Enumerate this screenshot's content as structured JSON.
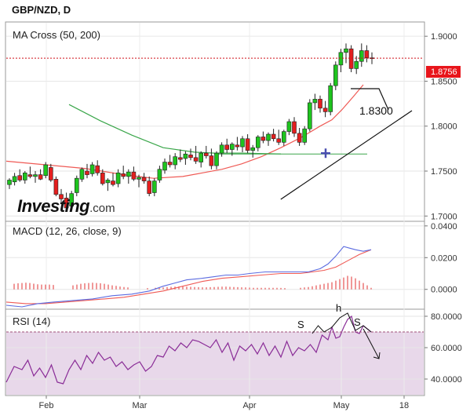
{
  "header": {
    "symbol": "GBP/NZD, D"
  },
  "watermark": {
    "brand": "Investing",
    "suffix": ".com"
  },
  "chart_data": [
    {
      "type": "candlestick",
      "title": "MA Cross (50, 200)",
      "y_ticks": [
        "1.9000",
        "1.8500",
        "1.8000",
        "1.7500",
        "1.7000"
      ],
      "ylim": [
        1.695,
        1.915
      ],
      "last_price": "1.8756",
      "last_price_value": 1.8756,
      "annotation": "1.8300",
      "x_ticks": [
        "Feb",
        "Mar",
        "Apr",
        "May",
        "18"
      ],
      "candles": [
        [
          1.735,
          1.742,
          1.73,
          1.74
        ],
        [
          1.738,
          1.748,
          1.734,
          1.744
        ],
        [
          1.745,
          1.752,
          1.738,
          1.74
        ],
        [
          1.74,
          1.75,
          1.736,
          1.748
        ],
        [
          1.746,
          1.755,
          1.742,
          1.744
        ],
        [
          1.744,
          1.75,
          1.737,
          1.746
        ],
        [
          1.746,
          1.752,
          1.74,
          1.741
        ],
        [
          1.745,
          1.76,
          1.742,
          1.757
        ],
        [
          1.754,
          1.758,
          1.738,
          1.74
        ],
        [
          1.741,
          1.744,
          1.722,
          1.724
        ],
        [
          1.724,
          1.73,
          1.715,
          1.719
        ],
        [
          1.72,
          1.726,
          1.706,
          1.709
        ],
        [
          1.711,
          1.728,
          1.708,
          1.725
        ],
        [
          1.726,
          1.745,
          1.722,
          1.742
        ],
        [
          1.741,
          1.754,
          1.738,
          1.752
        ],
        [
          1.75,
          1.758,
          1.742,
          1.746
        ],
        [
          1.747,
          1.76,
          1.744,
          1.757
        ],
        [
          1.756,
          1.762,
          1.745,
          1.748
        ],
        [
          1.748,
          1.752,
          1.734,
          1.736
        ],
        [
          1.737,
          1.742,
          1.728,
          1.74
        ],
        [
          1.739,
          1.748,
          1.733,
          1.735
        ],
        [
          1.736,
          1.752,
          1.732,
          1.748
        ],
        [
          1.747,
          1.756,
          1.741,
          1.744
        ],
        [
          1.744,
          1.752,
          1.736,
          1.749
        ],
        [
          1.749,
          1.755,
          1.739,
          1.741
        ],
        [
          1.741,
          1.746,
          1.732,
          1.743
        ],
        [
          1.743,
          1.748,
          1.736,
          1.739
        ],
        [
          1.739,
          1.744,
          1.722,
          1.725
        ],
        [
          1.726,
          1.742,
          1.722,
          1.739
        ],
        [
          1.74,
          1.756,
          1.737,
          1.752
        ],
        [
          1.751,
          1.764,
          1.747,
          1.76
        ],
        [
          1.76,
          1.768,
          1.754,
          1.757
        ],
        [
          1.757,
          1.77,
          1.752,
          1.766
        ],
        [
          1.765,
          1.774,
          1.76,
          1.763
        ],
        [
          1.764,
          1.772,
          1.757,
          1.769
        ],
        [
          1.768,
          1.775,
          1.762,
          1.765
        ],
        [
          1.765,
          1.778,
          1.758,
          1.761
        ],
        [
          1.76,
          1.772,
          1.754,
          1.77
        ],
        [
          1.77,
          1.778,
          1.764,
          1.767
        ],
        [
          1.767,
          1.775,
          1.752,
          1.756
        ],
        [
          1.756,
          1.772,
          1.752,
          1.77
        ],
        [
          1.77,
          1.782,
          1.766,
          1.779
        ],
        [
          1.779,
          1.786,
          1.77,
          1.774
        ],
        [
          1.774,
          1.782,
          1.767,
          1.78
        ],
        [
          1.779,
          1.788,
          1.773,
          1.777
        ],
        [
          1.777,
          1.789,
          1.771,
          1.786
        ],
        [
          1.786,
          1.791,
          1.77,
          1.773
        ],
        [
          1.773,
          1.779,
          1.765,
          1.776
        ],
        [
          1.776,
          1.79,
          1.772,
          1.788
        ],
        [
          1.788,
          1.794,
          1.781,
          1.784
        ],
        [
          1.784,
          1.793,
          1.778,
          1.791
        ],
        [
          1.791,
          1.797,
          1.783,
          1.786
        ],
        [
          1.786,
          1.796,
          1.779,
          1.782
        ],
        [
          1.782,
          1.796,
          1.778,
          1.794
        ],
        [
          1.794,
          1.808,
          1.79,
          1.805
        ],
        [
          1.805,
          1.81,
          1.788,
          1.792
        ],
        [
          1.792,
          1.798,
          1.778,
          1.782
        ],
        [
          1.782,
          1.8,
          1.779,
          1.797
        ],
        [
          1.797,
          1.83,
          1.794,
          1.826
        ],
        [
          1.826,
          1.836,
          1.818,
          1.83
        ],
        [
          1.83,
          1.834,
          1.815,
          1.82
        ],
        [
          1.82,
          1.828,
          1.81,
          1.816
        ],
        [
          1.816,
          1.848,
          1.812,
          1.845
        ],
        [
          1.845,
          1.872,
          1.84,
          1.868
        ],
        [
          1.868,
          1.886,
          1.86,
          1.882
        ],
        [
          1.882,
          1.892,
          1.87,
          1.886
        ],
        [
          1.886,
          1.89,
          1.86,
          1.864
        ],
        [
          1.864,
          1.878,
          1.858,
          1.872
        ],
        [
          1.872,
          1.892,
          1.866,
          1.884
        ],
        [
          1.884,
          1.89,
          1.871,
          1.876
        ],
        [
          1.876,
          1.882,
          1.869,
          1.8756
        ]
      ],
      "ma50": [
        [
          32,
          1.824
        ],
        [
          48,
          1.806
        ],
        [
          64,
          1.79
        ],
        [
          80,
          1.776
        ],
        [
          96,
          1.771
        ],
        [
          106,
          1.77
        ],
        [
          120,
          1.77
        ],
        [
          140,
          1.769
        ]
      ],
      "ma200": [
        [
          0,
          1.761
        ],
        [
          20,
          1.757
        ],
        [
          40,
          1.753
        ],
        [
          60,
          1.746
        ],
        [
          75,
          1.742
        ],
        [
          90,
          1.744
        ],
        [
          100,
          1.748
        ],
        [
          110,
          1.752
        ],
        [
          120,
          1.758
        ],
        [
          130,
          1.766
        ],
        [
          140,
          1.776
        ],
        [
          150,
          1.787
        ],
        [
          160,
          1.8
        ],
        [
          166,
          1.807
        ],
        [
          171,
          1.818
        ],
        [
          177,
          1.833
        ],
        [
          182,
          1.846
        ]
      ],
      "cross": [
        108,
        1.769
      ],
      "trendline": [
        [
          73,
          1.718
        ],
        [
          211,
          1.828
        ]
      ],
      "callout": [
        [
          184,
          1.856
        ],
        [
          194,
          1.856
        ],
        [
          210,
          1.829
        ]
      ]
    },
    {
      "type": "line",
      "title": "MACD (12, 26, close, 9)",
      "y_ticks": [
        "0.0400",
        "0.0200",
        "0.0000"
      ],
      "ylim": [
        -0.012,
        0.0424
      ],
      "macd": [
        [
          0,
          -0.01
        ],
        [
          8,
          -0.011
        ],
        [
          16,
          -0.009
        ],
        [
          24,
          -0.008
        ],
        [
          34,
          -0.007
        ],
        [
          44,
          -0.006
        ],
        [
          54,
          -0.004
        ],
        [
          64,
          -0.003
        ],
        [
          73,
          -0.001
        ],
        [
          80,
          0.002
        ],
        [
          86,
          0.004
        ],
        [
          92,
          0.006
        ],
        [
          100,
          0.007
        ],
        [
          106,
          0.008
        ],
        [
          112,
          0.009
        ],
        [
          118,
          0.009
        ],
        [
          124,
          0.01
        ],
        [
          132,
          0.011
        ],
        [
          140,
          0.011
        ],
        [
          148,
          0.011
        ],
        [
          154,
          0.011
        ],
        [
          160,
          0.013
        ],
        [
          164,
          0.016
        ],
        [
          168,
          0.021
        ],
        [
          172,
          0.027
        ],
        [
          175,
          0.026
        ],
        [
          178,
          0.025
        ],
        [
          182,
          0.024
        ],
        [
          186,
          0.025
        ]
      ],
      "signal": [
        [
          0,
          -0.008
        ],
        [
          10,
          -0.009
        ],
        [
          20,
          -0.009
        ],
        [
          30,
          -0.008
        ],
        [
          40,
          -0.007
        ],
        [
          50,
          -0.006
        ],
        [
          60,
          -0.005
        ],
        [
          70,
          -0.003
        ],
        [
          80,
          -0.001
        ],
        [
          90,
          0.002
        ],
        [
          100,
          0.005
        ],
        [
          110,
          0.007
        ],
        [
          120,
          0.008
        ],
        [
          130,
          0.009
        ],
        [
          140,
          0.01
        ],
        [
          150,
          0.01
        ],
        [
          156,
          0.011
        ],
        [
          162,
          0.012
        ],
        [
          168,
          0.014
        ],
        [
          174,
          0.018
        ],
        [
          180,
          0.022
        ],
        [
          186,
          0.025
        ]
      ],
      "histogram": [
        [
          4,
          0.0035
        ],
        [
          6,
          0.0038
        ],
        [
          8,
          0.004
        ],
        [
          10,
          0.0042
        ],
        [
          12,
          0.004
        ],
        [
          14,
          0.0036
        ],
        [
          16,
          0.0032
        ],
        [
          18,
          0.003
        ],
        [
          20,
          0.003
        ],
        [
          22,
          0.003
        ],
        [
          24,
          0.0028
        ],
        [
          34,
          0.0025
        ],
        [
          36,
          0.003
        ],
        [
          38,
          0.0035
        ],
        [
          40,
          0.0038
        ],
        [
          42,
          0.004
        ],
        [
          44,
          0.0042
        ],
        [
          46,
          0.004
        ],
        [
          48,
          0.0038
        ],
        [
          50,
          0.0035
        ],
        [
          52,
          0.003
        ],
        [
          54,
          0.0025
        ],
        [
          56,
          0.0022
        ],
        [
          58,
          0.0018
        ],
        [
          60,
          0.0015
        ],
        [
          62,
          0.0012
        ],
        [
          72,
          0.0008
        ],
        [
          76,
          0.001
        ],
        [
          78,
          0.001
        ],
        [
          80,
          0.0012
        ],
        [
          82,
          0.0015
        ],
        [
          84,
          0.0016
        ],
        [
          86,
          0.0017
        ],
        [
          88,
          0.0018
        ],
        [
          90,
          0.0018
        ],
        [
          92,
          0.0017
        ],
        [
          94,
          0.0016
        ],
        [
          96,
          0.0015
        ],
        [
          98,
          0.0014
        ],
        [
          100,
          0.0013
        ],
        [
          102,
          0.0013
        ],
        [
          104,
          0.0014
        ],
        [
          106,
          0.0015
        ],
        [
          108,
          0.0016
        ],
        [
          110,
          0.0017
        ],
        [
          112,
          0.0017
        ],
        [
          114,
          0.0016
        ],
        [
          116,
          0.0015
        ],
        [
          118,
          0.0014
        ],
        [
          120,
          0.0013
        ],
        [
          122,
          0.0012
        ],
        [
          124,
          0.0011
        ],
        [
          126,
          0.001
        ],
        [
          128,
          0.001
        ],
        [
          130,
          0.001
        ],
        [
          132,
          0.001
        ],
        [
          134,
          0.001
        ],
        [
          136,
          0.001
        ],
        [
          138,
          0.001
        ],
        [
          140,
          0.0009
        ],
        [
          142,
          0.0008
        ],
        [
          150,
          0.001
        ],
        [
          152,
          0.0012
        ],
        [
          154,
          0.0015
        ],
        [
          156,
          0.002
        ],
        [
          158,
          0.0025
        ],
        [
          160,
          0.003
        ],
        [
          162,
          0.0035
        ],
        [
          164,
          0.004
        ],
        [
          166,
          0.0045
        ],
        [
          168,
          0.0055
        ],
        [
          170,
          0.0065
        ],
        [
          172,
          0.0075
        ],
        [
          174,
          0.0085
        ],
        [
          176,
          0.008
        ],
        [
          178,
          0.007
        ],
        [
          180,
          0.0055
        ],
        [
          182,
          0.004
        ],
        [
          184,
          0.0025
        ],
        [
          186,
          0.001
        ]
      ]
    },
    {
      "type": "line",
      "title": "RSI (14)",
      "y_ticks": [
        "80.0000",
        "60.0000",
        "40.0000"
      ],
      "ylim": [
        30.0,
        84.0
      ],
      "overbought": 70,
      "oversold": 30,
      "rsi": [
        [
          0,
          38
        ],
        [
          4,
          48
        ],
        [
          8,
          46
        ],
        [
          11,
          52
        ],
        [
          14,
          42
        ],
        [
          17,
          47
        ],
        [
          20,
          41
        ],
        [
          23,
          49
        ],
        [
          26,
          38
        ],
        [
          29,
          37
        ],
        [
          32,
          46
        ],
        [
          35,
          52
        ],
        [
          38,
          46
        ],
        [
          41,
          55
        ],
        [
          44,
          50
        ],
        [
          47,
          57
        ],
        [
          50,
          52
        ],
        [
          53,
          54
        ],
        [
          56,
          48
        ],
        [
          59,
          51
        ],
        [
          62,
          46
        ],
        [
          65,
          49
        ],
        [
          68,
          51
        ],
        [
          71,
          45
        ],
        [
          74,
          48
        ],
        [
          77,
          55
        ],
        [
          80,
          54
        ],
        [
          83,
          61
        ],
        [
          86,
          58
        ],
        [
          89,
          63
        ],
        [
          92,
          60
        ],
        [
          95,
          65
        ],
        [
          98,
          64
        ],
        [
          101,
          62
        ],
        [
          104,
          60
        ],
        [
          107,
          65
        ],
        [
          110,
          57
        ],
        [
          113,
          63
        ],
        [
          116,
          52
        ],
        [
          119,
          61
        ],
        [
          122,
          58
        ],
        [
          125,
          62
        ],
        [
          128,
          56
        ],
        [
          131,
          63
        ],
        [
          134,
          55
        ],
        [
          137,
          61
        ],
        [
          140,
          54
        ],
        [
          143,
          64
        ],
        [
          146,
          55
        ],
        [
          149,
          60
        ],
        [
          152,
          58
        ],
        [
          155,
          62
        ],
        [
          158,
          57
        ],
        [
          161,
          68
        ],
        [
          164,
          65
        ],
        [
          166,
          73
        ],
        [
          168,
          66
        ],
        [
          170,
          67
        ],
        [
          172,
          73
        ],
        [
          174,
          78
        ],
        [
          176,
          80
        ],
        [
          178,
          70
        ],
        [
          180,
          69
        ],
        [
          182,
          74
        ],
        [
          184,
          72
        ],
        [
          186,
          70
        ]
      ],
      "annotations": {
        "s1": "S",
        "h": "h",
        "s2": "S"
      },
      "hs_path": [
        [
          156,
          69
        ],
        [
          159,
          74
        ],
        [
          162,
          70
        ],
        [
          166,
          73
        ],
        [
          170,
          79
        ],
        [
          174,
          82
        ],
        [
          178,
          71
        ],
        [
          182,
          74
        ],
        [
          186,
          70
        ]
      ],
      "arrow": [
        [
          182,
          72
        ],
        [
          190,
          53
        ]
      ]
    }
  ]
}
